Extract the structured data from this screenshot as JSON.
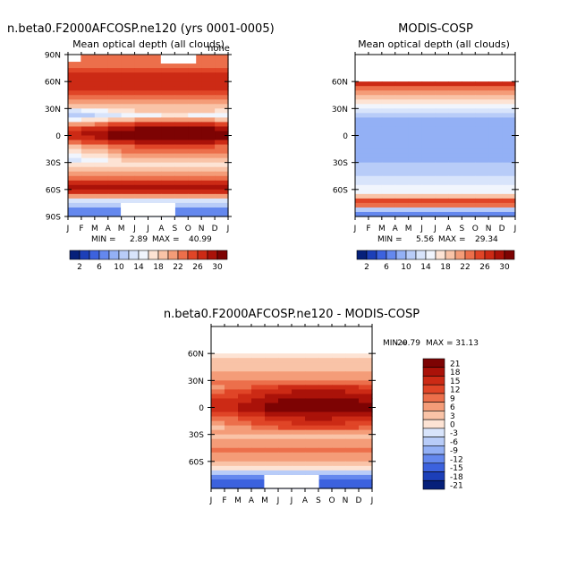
{
  "months": [
    "J",
    "F",
    "M",
    "A",
    "M",
    "J",
    "J",
    "A",
    "S",
    "O",
    "N",
    "D",
    "J"
  ],
  "colorbar_main": {
    "labels": [
      "2",
      "6",
      "10",
      "14",
      "18",
      "22",
      "26",
      "30"
    ],
    "colors": [
      "#06207a",
      "#1c3fb8",
      "#3c62de",
      "#6488ee",
      "#93b0f5",
      "#b8ccf8",
      "#d8e4fb",
      "#f1f5fd",
      "#fde3d4",
      "#f9c3a7",
      "#f49c78",
      "#ec6f4b",
      "#e04527",
      "#cc2a15",
      "#aa1209",
      "#7d0303"
    ]
  },
  "colorbar_diff": {
    "labels": [
      "21",
      "18",
      "15",
      "12",
      "9",
      "6",
      "3",
      "0",
      "-3",
      "-6",
      "-9",
      "-12",
      "-15",
      "-18",
      "-21"
    ],
    "colors": [
      "#7d0303",
      "#aa1209",
      "#cc2a15",
      "#e04527",
      "#ec6f4b",
      "#f49c78",
      "#f9c3a7",
      "#fde3d4",
      "#d8e4fb",
      "#b8ccf8",
      "#93b0f5",
      "#6488ee",
      "#3c62de",
      "#1c3fb8",
      "#06207a"
    ]
  },
  "chart_data": [
    {
      "type": "heatmap",
      "id": "model",
      "title": "n.beta0.F2000AFCOSP.ne120 (yrs 0001-0005)",
      "subtitle": "Mean optical depth (all clouds)",
      "corner_label": "none",
      "x_tick_labels": [
        "J",
        "F",
        "M",
        "A",
        "M",
        "J",
        "J",
        "A",
        "S",
        "O",
        "N",
        "D",
        "J"
      ],
      "y_tick_labels": [
        "90N",
        "60N",
        "30N",
        "0",
        "30S",
        "60S",
        "90S"
      ],
      "ylim": [
        -90,
        90
      ],
      "stats": {
        "min_label": "MIN =",
        "min": "2.89",
        "max_label": "MAX =",
        "max": "40.99"
      },
      "lat_profile": [
        {
          "lat": 80,
          "value": 22
        },
        {
          "lat": 65,
          "value": 27
        },
        {
          "lat": 50,
          "value": 26
        },
        {
          "lat": 35,
          "value": 20
        },
        {
          "lat": 22,
          "value": 12
        },
        {
          "lat": 10,
          "value": 26
        },
        {
          "lat": 0,
          "value": 31
        },
        {
          "lat": -12,
          "value": 22
        },
        {
          "lat": -30,
          "value": 15
        },
        {
          "lat": -45,
          "value": 22
        },
        {
          "lat": -60,
          "value": 30
        },
        {
          "lat": -72,
          "value": 14
        },
        {
          "lat": -85,
          "value": 6
        }
      ]
    },
    {
      "type": "heatmap",
      "id": "obs",
      "title": "MODIS-COSP",
      "subtitle": "Mean optical depth (all clouds)",
      "x_tick_labels": [
        "J",
        "F",
        "M",
        "A",
        "M",
        "J",
        "J",
        "A",
        "S",
        "O",
        "N",
        "D",
        "J"
      ],
      "y_tick_labels": [
        "60N",
        "30N",
        "0",
        "30S",
        "60S"
      ],
      "ylim": [
        -90,
        90
      ],
      "stats": {
        "min_label": "MIN =",
        "min": "5.56",
        "max_label": "MAX =",
        "max": "29.34"
      },
      "lat_profile": [
        {
          "lat": 60,
          "value": 29
        },
        {
          "lat": 50,
          "value": 22
        },
        {
          "lat": 40,
          "value": 18
        },
        {
          "lat": 25,
          "value": 11
        },
        {
          "lat": 5,
          "value": 8
        },
        {
          "lat": -20,
          "value": 9
        },
        {
          "lat": -45,
          "value": 12
        },
        {
          "lat": -65,
          "value": 16
        },
        {
          "lat": -75,
          "value": 29
        },
        {
          "lat": -85,
          "value": 6
        }
      ]
    },
    {
      "type": "heatmap",
      "id": "diff",
      "title": "n.beta0.F2000AFCOSP.ne120 - MODIS-COSP",
      "x_tick_labels": [
        "J",
        "F",
        "M",
        "A",
        "M",
        "J",
        "J",
        "A",
        "S",
        "O",
        "N",
        "D",
        "J"
      ],
      "y_tick_labels": [
        "60N",
        "30N",
        "0",
        "30S",
        "60S"
      ],
      "ylim": [
        -90,
        90
      ],
      "stats": {
        "min_label": "MIN =",
        "min": "-20.79",
        "max_label": "MAX =",
        "max": "31.13"
      },
      "lat_profile": [
        {
          "lat": 60,
          "value": 1
        },
        {
          "lat": 45,
          "value": 5
        },
        {
          "lat": 30,
          "value": 8
        },
        {
          "lat": 10,
          "value": 17
        },
        {
          "lat": 0,
          "value": 20
        },
        {
          "lat": -15,
          "value": 12
        },
        {
          "lat": -30,
          "value": 5
        },
        {
          "lat": -50,
          "value": 10
        },
        {
          "lat": -65,
          "value": 3
        },
        {
          "lat": -75,
          "value": -8
        },
        {
          "lat": -85,
          "value": -15
        }
      ]
    }
  ]
}
